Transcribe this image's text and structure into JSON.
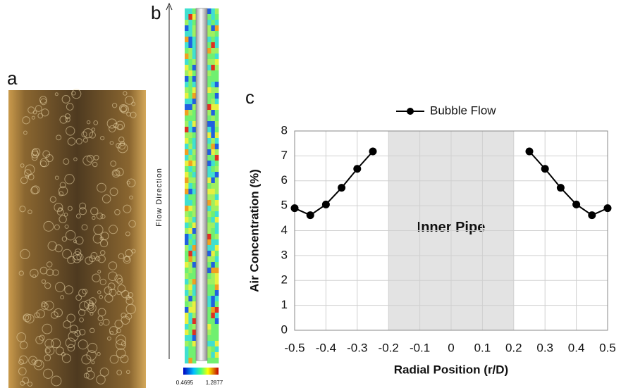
{
  "panel_a": {
    "label": "a"
  },
  "panel_b": {
    "label": "b",
    "axis_label": "Flow Direction",
    "colorbar_labels": [
      "0.4695",
      "1.2877"
    ]
  },
  "chart_data": {
    "type": "line",
    "panel_label": "c",
    "x": [
      -0.5,
      -0.45,
      -0.4,
      -0.35,
      -0.3,
      -0.25,
      0,
      0.25,
      0.3,
      0.35,
      0.4,
      0.45,
      0.5
    ],
    "series": [
      {
        "name": "Bubble Flow",
        "color": "#000000",
        "values": [
          4.9,
          4.62,
          5.05,
          5.72,
          6.48,
          7.18,
          null,
          7.18,
          6.48,
          5.72,
          5.05,
          4.62,
          4.9
        ]
      }
    ],
    "xlabel": "Radial Position (r/D)",
    "ylabel": "Air Concentration (%)",
    "xlim": [
      -0.5,
      0.5
    ],
    "ylim": [
      0,
      8
    ],
    "xticks": [
      -0.5,
      -0.4,
      -0.3,
      -0.2,
      -0.1,
      0,
      0.1,
      0.2,
      0.3,
      0.4,
      0.5
    ],
    "yticks": [
      0,
      1,
      2,
      3,
      4,
      5,
      6,
      7,
      8
    ],
    "grid": true,
    "legend": "top",
    "shaded_region": {
      "label": "Inner Pipe",
      "xmin": -0.2,
      "xmax": 0.2,
      "color": "#e3e3e3"
    }
  }
}
